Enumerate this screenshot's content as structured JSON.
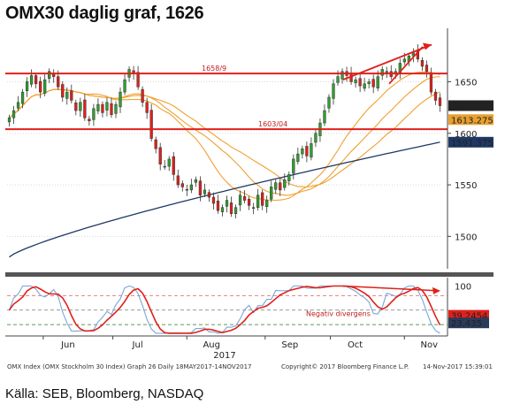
{
  "title": "OMX30 daglig graf, 1626",
  "source": "Källa: SEB, Bloomberg, NASDAQ",
  "footer": {
    "left": "OMX Index (OMX Stockholm 30 Index) Graph 26  Daily 18MAY2017-14NOV2017",
    "center": "Copyright© 2017 Bloomberg Finance L.P.",
    "right": "14-Nov-2017 15:39:01"
  },
  "colors": {
    "up": "#2ca02c",
    "down": "#e0201b",
    "ma_dark": "#1f3864",
    "ma_orange": "#f0a030",
    "resistance": "#e0201b",
    "badge_price": "#222222",
    "badge_ma": "#e8a030",
    "badge_blue": "#1f3864",
    "badge_red": "#e0201b"
  },
  "chart_data": [
    {
      "type": "candlestick",
      "yticks": [
        1500,
        1550,
        1600,
        1650
      ],
      "ylim": [
        1472,
        1695
      ],
      "xticks": [
        "Jun",
        "Jul",
        "Aug",
        "Sep",
        "Oct",
        "Nov"
      ],
      "xlabel_year": "2017",
      "levels": [
        {
          "label": "1658/9",
          "value": 1658
        },
        {
          "label": "1603/04",
          "value": 1604
        }
      ],
      "last_values": [
        {
          "label": "1626.832",
          "value": 1626.832
        },
        {
          "label": "1613.275",
          "value": 1613.275
        },
        {
          "label": "1591.375",
          "value": 1591.375
        }
      ],
      "series_close": [
        1615,
        1622,
        1630,
        1640,
        1650,
        1656,
        1648,
        1640,
        1652,
        1660,
        1655,
        1645,
        1635,
        1640,
        1632,
        1622,
        1630,
        1615,
        1612,
        1624,
        1628,
        1620,
        1630,
        1618,
        1628,
        1640,
        1652,
        1662,
        1658,
        1645,
        1630,
        1620,
        1595,
        1585,
        1570,
        1568,
        1575,
        1560,
        1550,
        1548,
        1545,
        1550,
        1555,
        1540,
        1545,
        1538,
        1532,
        1525,
        1528,
        1535,
        1522,
        1528,
        1540,
        1535,
        1530,
        1528,
        1540,
        1530,
        1535,
        1548,
        1552,
        1545,
        1555,
        1560,
        1575,
        1580,
        1585,
        1578,
        1590,
        1600,
        1610,
        1622,
        1635,
        1648,
        1655,
        1660,
        1656,
        1650,
        1652,
        1646,
        1648,
        1650,
        1645,
        1655,
        1662,
        1660,
        1655,
        1660,
        1668,
        1672,
        1675,
        1678,
        1672,
        1665,
        1660,
        1640,
        1632,
        1626.8
      ]
    },
    {
      "type": "line",
      "name": "",
      "yticks": [
        100
      ],
      "ylim": [
        0,
        110
      ],
      "levels": [
        80,
        50,
        20
      ],
      "annotation": "Negativ divergens",
      "last_values": [
        {
          "label": "39.2454",
          "value": 39.2454
        },
        {
          "label": "23.435",
          "value": 23.435
        }
      ]
    }
  ]
}
